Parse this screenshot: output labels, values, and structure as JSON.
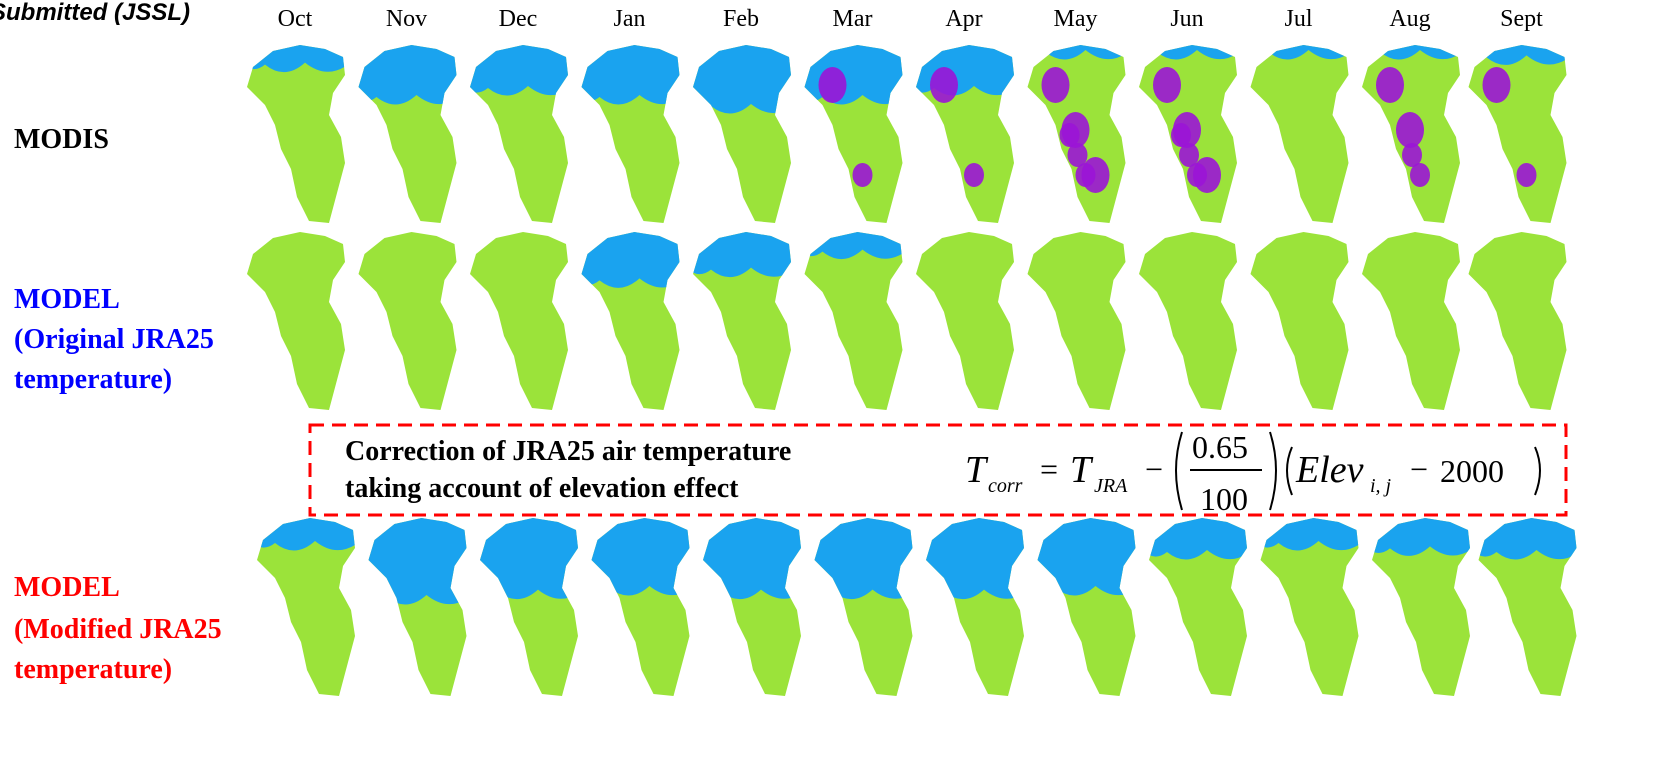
{
  "header": {
    "note": "Submitted (JSSL)"
  },
  "months": [
    "Oct",
    "Nov",
    "Dec",
    "Jan",
    "Feb",
    "Mar",
    "Apr",
    "May",
    "Jun",
    "Jul",
    "Aug",
    "Sept"
  ],
  "rows": [
    {
      "lines": [
        "MODIS"
      ]
    },
    {
      "lines": [
        "MODEL",
        "(Original JRA25",
        "temperature)"
      ]
    },
    {
      "lines": [
        "MODEL",
        "(Modified JRA25",
        "temperature)"
      ]
    }
  ],
  "correction": {
    "lines": [
      "Correction of JRA25 air temperature",
      "taking account of elevation effect"
    ],
    "formula": {
      "lhs": "T",
      "lhs_sub": "corr",
      "eq": "=",
      "t": "T",
      "t_sub": "JRA",
      "minus1": "−",
      "num": "0.65",
      "den": "100",
      "elev": "Elev",
      "elev_sub": "i, j",
      "minus2": "−",
      "const": "2000"
    }
  }
}
